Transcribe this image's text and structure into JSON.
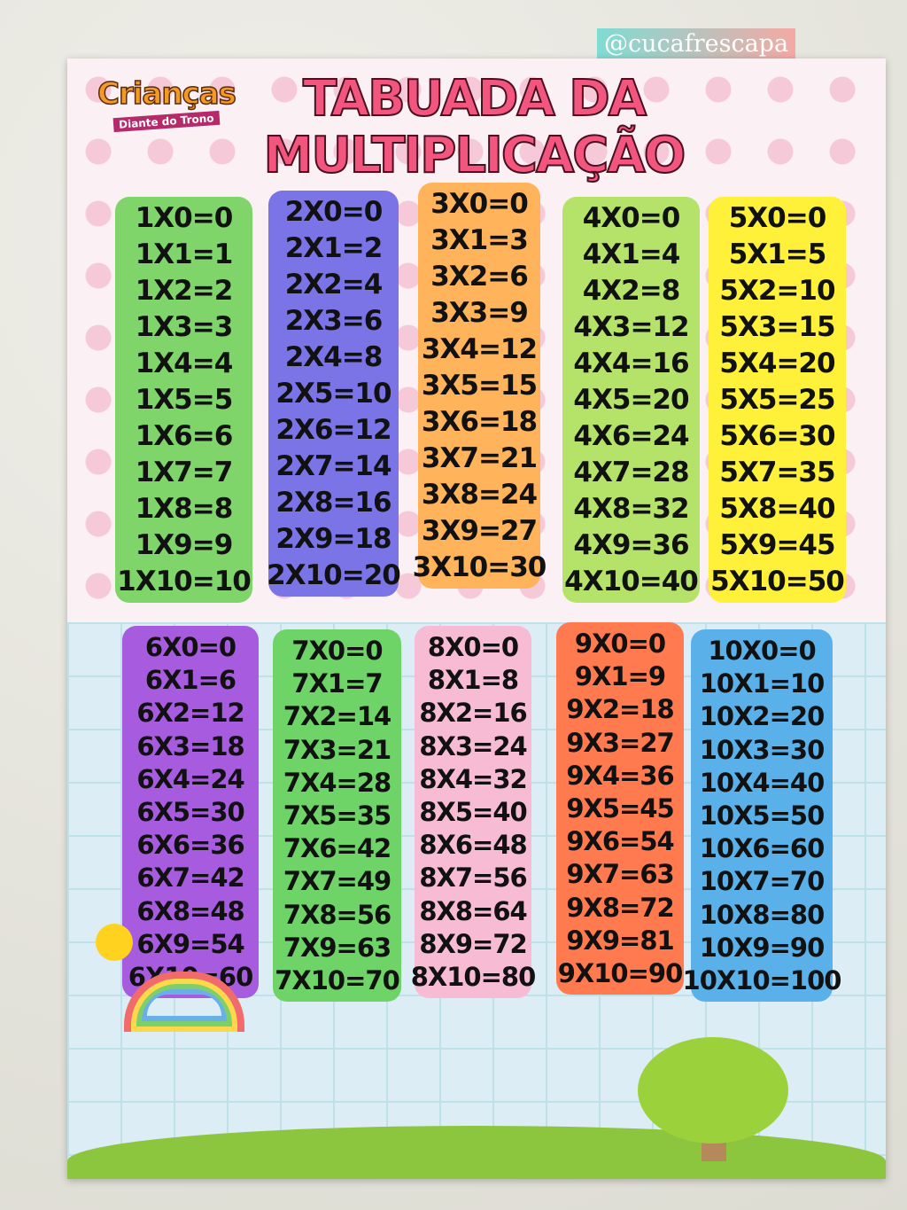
{
  "watermark": "@cucafrescapa",
  "logo": {
    "name": "Crianças",
    "subtitle": "Diante do Trono"
  },
  "title": {
    "line1": "TABUADA DA",
    "line2": "MULTIPLICAÇÃO"
  },
  "tables": [
    {
      "color": "#7fd46a",
      "rows": [
        "1X0=0",
        "1X1=1",
        "1X2=2",
        "1X3=3",
        "1X4=4",
        "1X5=5",
        "1X6=6",
        "1X7=7",
        "1X8=8",
        "1X9=9",
        "1X10=10"
      ]
    },
    {
      "color": "#7b74e6",
      "rows": [
        "2X0=0",
        "2X1=2",
        "2X2=4",
        "2X3=6",
        "2X4=8",
        "2X5=10",
        "2X6=12",
        "2X7=14",
        "2X8=16",
        "2X9=18",
        "2X10=20"
      ]
    },
    {
      "color": "#ffb35a",
      "rows": [
        "3X0=0",
        "3X1=3",
        "3X2=6",
        "3X3=9",
        "3X4=12",
        "3X5=15",
        "3X6=18",
        "3X7=21",
        "3X8=24",
        "3X9=27",
        "3X10=30"
      ]
    },
    {
      "color": "#b5e36a",
      "rows": [
        "4X0=0",
        "4X1=4",
        "4X2=8",
        "4X3=12",
        "4X4=16",
        "4X5=20",
        "4X6=24",
        "4X7=28",
        "4X8=32",
        "4X9=36",
        "4X10=40"
      ]
    },
    {
      "color": "#fff13a",
      "rows": [
        "5X0=0",
        "5X1=5",
        "5X2=10",
        "5X3=15",
        "5X4=20",
        "5X5=25",
        "5X6=30",
        "5X7=35",
        "5X8=40",
        "5X9=45",
        "5X10=50"
      ]
    },
    {
      "color": "#a75ce0",
      "rows": [
        "6X0=0",
        "6X1=6",
        "6X2=12",
        "6X3=18",
        "6X4=24",
        "6X5=30",
        "6X6=36",
        "6X7=42",
        "6X8=48",
        "6X9=54",
        "6X10=60"
      ]
    },
    {
      "color": "#6fd467",
      "rows": [
        "7X0=0",
        "7X1=7",
        "7X2=14",
        "7X3=21",
        "7X4=28",
        "7X5=35",
        "7X6=42",
        "7X7=49",
        "7X8=56",
        "7X9=63",
        "7X10=70"
      ]
    },
    {
      "color": "#f7bcd4",
      "rows": [
        "8X0=0",
        "8X1=8",
        "8X2=16",
        "8X3=24",
        "8X4=32",
        "8X5=40",
        "8X6=48",
        "8X7=56",
        "8X8=64",
        "8X9=72",
        "8X10=80"
      ]
    },
    {
      "color": "#ff7a4f",
      "rows": [
        "9X0=0",
        "9X1=9",
        "9X2=18",
        "9X3=27",
        "9X4=36",
        "9X5=45",
        "9X6=54",
        "9X7=63",
        "9X8=72",
        "9X9=81",
        "9X10=90"
      ]
    },
    {
      "color": "#5ab1ea",
      "rows": [
        "10X0=0",
        "10X1=10",
        "10X2=20",
        "10X3=30",
        "10X4=40",
        "10X5=50",
        "10X6=60",
        "10X7=70",
        "10X8=80",
        "10X9=90",
        "10X10=100"
      ]
    }
  ]
}
